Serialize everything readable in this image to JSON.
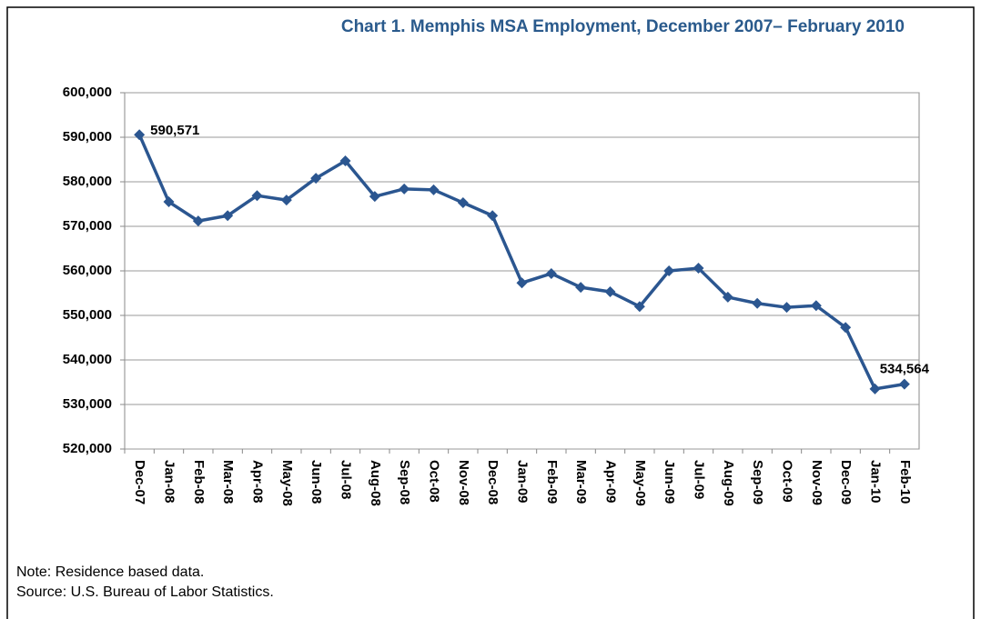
{
  "chart_data": {
    "type": "line",
    "title": "Chart 1.  Memphis MSA Employment, December 2007– February 2010",
    "categories": [
      "Dec-07",
      "Jan-08",
      "Feb-08",
      "Mar-08",
      "Apr-08",
      "May-08",
      "Jun-08",
      "Jul-08",
      "Aug-08",
      "Sep-08",
      "Oct-08",
      "Nov-08",
      "Dec-08",
      "Jan-09",
      "Feb-09",
      "Mar-09",
      "Apr-09",
      "May-09",
      "Jun-09",
      "Jul-09",
      "Aug-09",
      "Sep-09",
      "Oct-09",
      "Nov-09",
      "Dec-09",
      "Jan-10",
      "Feb-10"
    ],
    "series": [
      {
        "name": "Employment",
        "color": "#2b5690",
        "values": [
          590571,
          575500,
          571200,
          572400,
          576900,
          575900,
          580800,
          584700,
          576700,
          578400,
          578200,
          575300,
          572400,
          557300,
          559400,
          556300,
          555300,
          552000,
          560000,
          560600,
          554100,
          552700,
          551800,
          552200,
          547300,
          533500,
          534564
        ],
        "value_labels": [
          "590,571",
          null,
          null,
          null,
          null,
          null,
          null,
          null,
          null,
          null,
          null,
          null,
          null,
          null,
          null,
          null,
          null,
          null,
          null,
          null,
          null,
          null,
          null,
          null,
          null,
          null,
          "534,564"
        ]
      }
    ],
    "ylim": [
      520000,
      600000
    ],
    "yticks": [
      {
        "value": 520000,
        "label": "520,000"
      },
      {
        "value": 530000,
        "label": "530,000"
      },
      {
        "value": 540000,
        "label": "540,000"
      },
      {
        "value": 550000,
        "label": "550,000"
      },
      {
        "value": 560000,
        "label": "560,000"
      },
      {
        "value": 570000,
        "label": "570,000"
      },
      {
        "value": 580000,
        "label": "580,000"
      },
      {
        "value": 590000,
        "label": "590,000"
      },
      {
        "value": 600000,
        "label": "600,000"
      }
    ],
    "grid": true,
    "note": "Note: Residence based data.",
    "source": "Source: U.S. Bureau of Labor Statistics."
  }
}
